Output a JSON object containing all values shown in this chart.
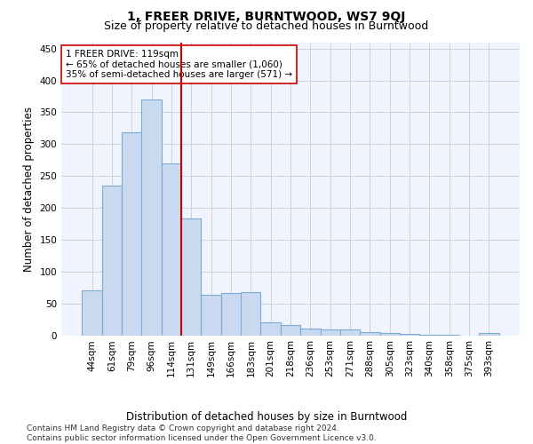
{
  "title": "1, FREER DRIVE, BURNTWOOD, WS7 9QJ",
  "subtitle": "Size of property relative to detached houses in Burntwood",
  "xlabel": "Distribution of detached houses by size in Burntwood",
  "ylabel": "Number of detached properties",
  "categories": [
    "44sqm",
    "61sqm",
    "79sqm",
    "96sqm",
    "114sqm",
    "131sqm",
    "149sqm",
    "166sqm",
    "183sqm",
    "201sqm",
    "218sqm",
    "236sqm",
    "253sqm",
    "271sqm",
    "288sqm",
    "305sqm",
    "323sqm",
    "340sqm",
    "358sqm",
    "375sqm",
    "393sqm"
  ],
  "values": [
    70,
    235,
    318,
    370,
    270,
    183,
    63,
    66,
    68,
    20,
    16,
    10,
    9,
    9,
    5,
    4,
    2,
    1,
    1,
    0,
    3
  ],
  "bar_color": "#c9d9f0",
  "bar_edge_color": "#7aacd6",
  "vline_x_index": 4,
  "vline_color": "#cc0000",
  "annotation_text": "1 FREER DRIVE: 119sqm\n← 65% of detached houses are smaller (1,060)\n35% of semi-detached houses are larger (571) →",
  "annotation_box_color": "#ffffff",
  "annotation_box_edge_color": "#cc0000",
  "ylim": [
    0,
    460
  ],
  "yticks": [
    0,
    50,
    100,
    150,
    200,
    250,
    300,
    350,
    400,
    450
  ],
  "footnote": "Contains HM Land Registry data © Crown copyright and database right 2024.\nContains public sector information licensed under the Open Government Licence v3.0.",
  "title_fontsize": 10,
  "subtitle_fontsize": 9,
  "axis_label_fontsize": 8.5,
  "tick_fontsize": 7.5,
  "annotation_fontsize": 7.5,
  "footnote_fontsize": 6.5
}
